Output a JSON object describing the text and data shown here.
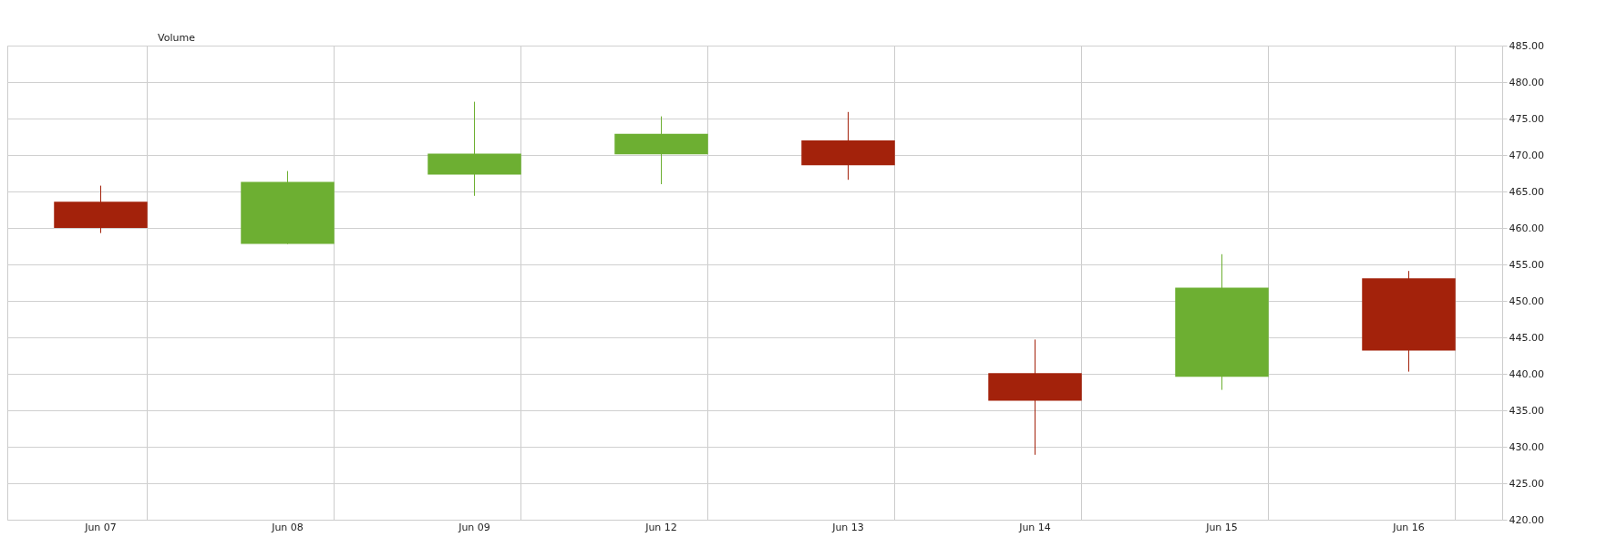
{
  "chart_data": {
    "type": "candlestick",
    "categories": [
      "Jun 07",
      "Jun 08",
      "Jun 09",
      "Jun 12",
      "Jun 13",
      "Jun 14",
      "Jun 15",
      "Jun 16"
    ],
    "ohlc": [
      [
        463.6,
        465.8,
        459.3,
        460.0
      ],
      [
        457.8,
        467.8,
        457.8,
        466.3
      ],
      [
        467.3,
        477.3,
        464.4,
        470.2
      ],
      [
        470.1,
        475.3,
        466.0,
        472.9
      ],
      [
        472.0,
        475.9,
        466.6,
        468.6
      ],
      [
        440.1,
        444.7,
        428.9,
        436.3
      ],
      [
        439.6,
        456.4,
        437.8,
        451.8
      ],
      [
        453.1,
        454.1,
        440.3,
        443.2
      ]
    ],
    "colors": [
      "#a3220b",
      "#6daf32",
      "#6daf32",
      "#6daf32",
      "#a3220b",
      "#a3220b",
      "#6daf32",
      "#a3220b"
    ],
    "ylim": [
      420,
      485
    ],
    "yticks": [
      {
        "value": 420,
        "label": "420.00"
      },
      {
        "value": 425,
        "label": "425.00"
      },
      {
        "value": 430,
        "label": "430.00"
      },
      {
        "value": 435,
        "label": "435.00"
      },
      {
        "value": 440,
        "label": "440.00"
      },
      {
        "value": 445,
        "label": "445.00"
      },
      {
        "value": 450,
        "label": "450.00"
      },
      {
        "value": 455,
        "label": "455.00"
      },
      {
        "value": 460,
        "label": "460.00"
      },
      {
        "value": 465,
        "label": "465.00"
      },
      {
        "value": 470,
        "label": "470.00"
      },
      {
        "value": 475,
        "label": "475.00"
      },
      {
        "value": 480,
        "label": "480.00"
      },
      {
        "value": 485,
        "label": "485.00"
      }
    ],
    "grid": true,
    "annotations": [
      "Volume"
    ]
  }
}
